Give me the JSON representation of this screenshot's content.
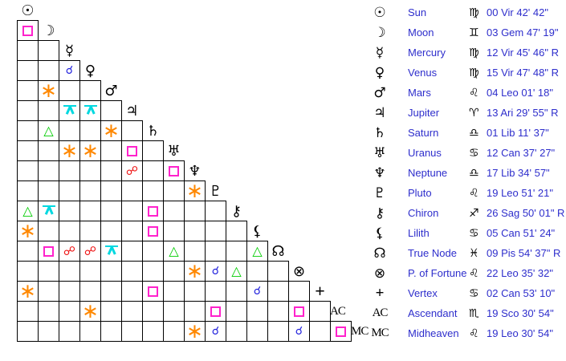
{
  "chart_data": {
    "type": "table",
    "title": "Astrological aspect grid with planetary positions",
    "bodies": [
      {
        "id": "sun",
        "name": "Sun",
        "glyph": "☉",
        "sign_glyph": "♍",
        "position": "00 Vir 42' 42\""
      },
      {
        "id": "moon",
        "name": "Moon",
        "glyph": "☽",
        "sign_glyph": "♊",
        "position": "03 Gem 47' 19\""
      },
      {
        "id": "mercury",
        "name": "Mercury",
        "glyph": "☿",
        "sign_glyph": "♍",
        "position": "12 Vir 45' 46\" R"
      },
      {
        "id": "venus",
        "name": "Venus",
        "glyph": "♀",
        "sign_glyph": "♍",
        "position": "15 Vir 47' 48\" R"
      },
      {
        "id": "mars",
        "name": "Mars",
        "glyph": "♂",
        "sign_glyph": "♌",
        "position": "04 Leo 01' 18\""
      },
      {
        "id": "jupiter",
        "name": "Jupiter",
        "glyph": "♃",
        "sign_glyph": "♈",
        "position": "13 Ari 29' 55\" R"
      },
      {
        "id": "saturn",
        "name": "Saturn",
        "glyph": "♄",
        "sign_glyph": "♎",
        "position": "01 Lib 11' 37\""
      },
      {
        "id": "uranus",
        "name": "Uranus",
        "glyph": "♅",
        "sign_glyph": "♋",
        "position": "12 Can 37' 27\""
      },
      {
        "id": "neptune",
        "name": "Neptune",
        "glyph": "♆",
        "sign_glyph": "♎",
        "position": "17 Lib 34' 57\""
      },
      {
        "id": "pluto",
        "name": "Pluto",
        "glyph": "♇",
        "sign_glyph": "♌",
        "position": "19 Leo 51' 21\""
      },
      {
        "id": "chiron",
        "name": "Chiron",
        "glyph": "⚷",
        "sign_glyph": "♐",
        "position": "26 Sag 50' 01\" R"
      },
      {
        "id": "lilith",
        "name": "Lilith",
        "glyph": "⚸",
        "sign_glyph": "♋",
        "position": "05 Can 51' 24\""
      },
      {
        "id": "true-node",
        "name": "True Node",
        "glyph": "☊",
        "sign_glyph": "♓",
        "position": "09 Pis 54' 37\" R"
      },
      {
        "id": "part-of-fortune",
        "name": "P. of Fortune",
        "glyph": "⊗",
        "sign_glyph": "♌",
        "position": "22 Leo 35' 32\""
      },
      {
        "id": "vertex",
        "name": "Vertex",
        "glyph": "+",
        "sign_glyph": "♋",
        "position": "02 Can 53' 10\""
      },
      {
        "id": "ascendant",
        "name": "Ascendant",
        "glyph": "AC",
        "sign_glyph": "♏",
        "position": "19 Sco 30' 54\""
      },
      {
        "id": "midheaven",
        "name": "Midheaven",
        "glyph": "MC",
        "sign_glyph": "♌",
        "position": "19 Leo 30' 54\""
      }
    ],
    "aspect_symbols": {
      "conjunction": "☌",
      "sextile": "∗",
      "square": "□",
      "trine": "△",
      "opposition": "☍",
      "quincunx": "⊼"
    },
    "aspects": [
      {
        "row": 1,
        "col": 0,
        "type": "square",
        "between": [
          "Sun",
          "Moon"
        ]
      },
      {
        "row": 3,
        "col": 2,
        "type": "conjunction",
        "between": [
          "Mercury",
          "Venus"
        ]
      },
      {
        "row": 4,
        "col": 1,
        "type": "sextile",
        "between": [
          "Moon",
          "Mars"
        ]
      },
      {
        "row": 5,
        "col": 2,
        "type": "quincunx",
        "between": [
          "Mercury",
          "Jupiter"
        ]
      },
      {
        "row": 5,
        "col": 3,
        "type": "quincunx",
        "between": [
          "Venus",
          "Jupiter"
        ]
      },
      {
        "row": 6,
        "col": 1,
        "type": "trine",
        "between": [
          "Moon",
          "Saturn"
        ]
      },
      {
        "row": 6,
        "col": 4,
        "type": "sextile",
        "between": [
          "Mars",
          "Saturn"
        ]
      },
      {
        "row": 7,
        "col": 2,
        "type": "sextile",
        "between": [
          "Mercury",
          "Uranus"
        ]
      },
      {
        "row": 7,
        "col": 3,
        "type": "sextile",
        "between": [
          "Venus",
          "Uranus"
        ]
      },
      {
        "row": 7,
        "col": 5,
        "type": "square",
        "between": [
          "Jupiter",
          "Uranus"
        ]
      },
      {
        "row": 8,
        "col": 5,
        "type": "opposition",
        "between": [
          "Jupiter",
          "Neptune"
        ]
      },
      {
        "row": 8,
        "col": 7,
        "type": "square",
        "between": [
          "Uranus",
          "Neptune"
        ]
      },
      {
        "row": 9,
        "col": 8,
        "type": "sextile",
        "between": [
          "Neptune",
          "Pluto"
        ]
      },
      {
        "row": 10,
        "col": 0,
        "type": "trine",
        "between": [
          "Sun",
          "Chiron"
        ]
      },
      {
        "row": 10,
        "col": 1,
        "type": "quincunx",
        "between": [
          "Moon",
          "Chiron"
        ]
      },
      {
        "row": 10,
        "col": 6,
        "type": "square",
        "between": [
          "Saturn",
          "Chiron"
        ]
      },
      {
        "row": 11,
        "col": 0,
        "type": "sextile",
        "between": [
          "Sun",
          "Lilith"
        ]
      },
      {
        "row": 11,
        "col": 6,
        "type": "square",
        "between": [
          "Saturn",
          "Lilith"
        ]
      },
      {
        "row": 12,
        "col": 1,
        "type": "square",
        "between": [
          "Moon",
          "True Node"
        ]
      },
      {
        "row": 12,
        "col": 2,
        "type": "opposition",
        "between": [
          "Mercury",
          "True Node"
        ]
      },
      {
        "row": 12,
        "col": 3,
        "type": "opposition",
        "between": [
          "Venus",
          "True Node"
        ]
      },
      {
        "row": 12,
        "col": 4,
        "type": "quincunx",
        "between": [
          "Mars",
          "True Node"
        ]
      },
      {
        "row": 12,
        "col": 7,
        "type": "trine",
        "between": [
          "Uranus",
          "True Node"
        ]
      },
      {
        "row": 12,
        "col": 11,
        "type": "trine",
        "between": [
          "Lilith",
          "True Node"
        ]
      },
      {
        "row": 13,
        "col": 8,
        "type": "sextile",
        "between": [
          "Neptune",
          "P. of Fortune"
        ]
      },
      {
        "row": 13,
        "col": 9,
        "type": "conjunction",
        "between": [
          "Pluto",
          "P. of Fortune"
        ]
      },
      {
        "row": 13,
        "col": 10,
        "type": "trine",
        "between": [
          "Chiron",
          "P. of Fortune"
        ]
      },
      {
        "row": 14,
        "col": 0,
        "type": "sextile",
        "between": [
          "Sun",
          "Vertex"
        ]
      },
      {
        "row": 14,
        "col": 6,
        "type": "square",
        "between": [
          "Saturn",
          "Vertex"
        ]
      },
      {
        "row": 14,
        "col": 11,
        "type": "conjunction",
        "between": [
          "Lilith",
          "Vertex"
        ]
      },
      {
        "row": 15,
        "col": 3,
        "type": "sextile",
        "between": [
          "Venus",
          "Ascendant"
        ]
      },
      {
        "row": 15,
        "col": 9,
        "type": "square",
        "between": [
          "Pluto",
          "Ascendant"
        ]
      },
      {
        "row": 15,
        "col": 13,
        "type": "square",
        "between": [
          "P. of Fortune",
          "Ascendant"
        ]
      },
      {
        "row": 16,
        "col": 8,
        "type": "sextile",
        "between": [
          "Neptune",
          "Midheaven"
        ]
      },
      {
        "row": 16,
        "col": 9,
        "type": "conjunction",
        "between": [
          "Pluto",
          "Midheaven"
        ]
      },
      {
        "row": 16,
        "col": 13,
        "type": "conjunction",
        "between": [
          "P. of Fortune",
          "Midheaven"
        ]
      },
      {
        "row": 16,
        "col": 15,
        "type": "square",
        "between": [
          "Ascendant",
          "Midheaven"
        ]
      }
    ]
  },
  "colors": {
    "background": "#ffffff",
    "grid_line": "#000000",
    "text_blue": "#2e2ecc",
    "conjunction": "#2222dd",
    "sextile": "#ff8800",
    "square": "#ff22cc",
    "trine": "#00cc00",
    "opposition": "#ee1111",
    "quincunx": "#00d8e0"
  }
}
